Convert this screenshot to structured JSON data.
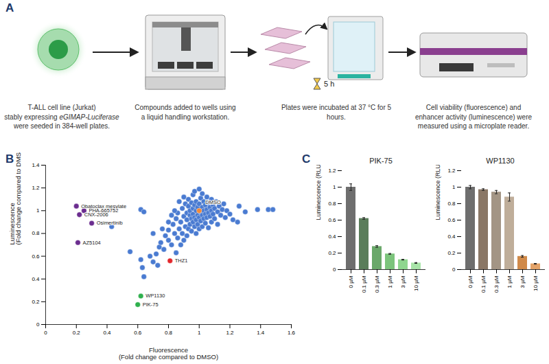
{
  "diagram": {
    "panel_label": "A",
    "italic": "eGIMAP-Luciferase",
    "steps": [
      {
        "caption": [
          "T-ALL cell line (Jurkat)",
          "stably expressing eGIMAP-Luciferase",
          "were seeded in 384-well plates."
        ]
      },
      {
        "caption": [
          "Compounds added to wells using",
          "a liquid handling workstation."
        ]
      },
      {
        "caption": [
          "Plates were incubated at 37 °C for 5 hours."
        ],
        "timer": "5 h"
      },
      {
        "caption": [
          "Cell viability (fluorescence) and",
          "enhancer activity (luminescence) were",
          "measured using a microplate reader."
        ]
      }
    ]
  },
  "chart_data": [
    {
      "panel_label": "B",
      "type": "scatter",
      "x_label": [
        "Fluorescence",
        "(Fold change compared to DMSO)"
      ],
      "y_label": [
        "Luminescence",
        "(Fold change compared to DMSO)"
      ],
      "xlim": [
        0,
        1.6
      ],
      "ylim": [
        0,
        1.4
      ],
      "xticks": [
        0,
        0.2,
        0.4,
        0.6,
        0.8,
        1,
        1.2,
        1.4,
        1.6
      ],
      "yticks": [
        0,
        0.2,
        0.4,
        0.6,
        0.8,
        1,
        1.2,
        1.4
      ],
      "series": [
        {
          "color": "#4a7bd1",
          "x": [
            0.45,
            0.43,
            0.62,
            0.64,
            0.55,
            0.62,
            0.63,
            0.64,
            0.7,
            0.72,
            0.74,
            0.75,
            0.77,
            0.78,
            0.8,
            0.8,
            0.82,
            0.83,
            0.84,
            0.85,
            0.85,
            0.86,
            0.86,
            0.87,
            0.88,
            0.88,
            0.89,
            0.89,
            0.9,
            0.9,
            0.9,
            0.91,
            0.91,
            0.92,
            0.92,
            0.92,
            0.93,
            0.93,
            0.93,
            0.94,
            0.94,
            0.94,
            0.95,
            0.95,
            0.95,
            0.96,
            0.96,
            0.96,
            0.96,
            0.97,
            0.97,
            0.97,
            0.97,
            0.98,
            0.98,
            0.98,
            0.98,
            0.99,
            0.99,
            0.99,
            1.0,
            1.0,
            1.0,
            1.0,
            1.01,
            1.01,
            1.01,
            1.02,
            1.02,
            1.02,
            1.02,
            1.03,
            1.03,
            1.03,
            1.04,
            1.04,
            1.04,
            1.05,
            1.05,
            1.05,
            1.06,
            1.06,
            1.06,
            1.07,
            1.07,
            1.08,
            1.08,
            1.08,
            1.09,
            1.09,
            1.1,
            1.1,
            1.11,
            1.12,
            1.12,
            1.13,
            1.14,
            1.15,
            1.16,
            1.17,
            1.18,
            1.2,
            1.22,
            1.25,
            1.26,
            1.3,
            1.38,
            1.45,
            1.48,
            0.82,
            0.84,
            0.87,
            0.8,
            0.76,
            0.7,
            0.68,
            0.73
          ],
          "y": [
            1.02,
            0.86,
            1.01,
            0.99,
            0.64,
            0.57,
            0.5,
            0.42,
            0.55,
            0.62,
            0.68,
            0.72,
            0.66,
            0.78,
            0.74,
            0.83,
            0.7,
            0.88,
            0.8,
            0.63,
            0.93,
            0.76,
            0.98,
            0.84,
            0.7,
            0.9,
            1.02,
            0.8,
            0.95,
            1.12,
            0.74,
            0.86,
            1.06,
            0.98,
            0.78,
            0.92,
            1.04,
            0.84,
            1.1,
            0.96,
            0.88,
            1.0,
            0.82,
            1.07,
            0.93,
            1.02,
            0.9,
            0.97,
            1.14,
            0.86,
            1.05,
            0.94,
            1.17,
            1.0,
            0.92,
            1.08,
            0.8,
            0.96,
            1.03,
            0.88,
            1.19,
            0.94,
            1.06,
            0.84,
            0.99,
            1.11,
            0.91,
            1.03,
            0.96,
            1.15,
            0.86,
            1.0,
            1.08,
            0.93,
            1.05,
            0.97,
            0.89,
            1.12,
            1.01,
            0.94,
            1.07,
            0.98,
            0.85,
            1.03,
            0.95,
            1.1,
            1.0,
            0.9,
            1.05,
            0.97,
            1.02,
            0.93,
            1.08,
            0.99,
            0.88,
            1.04,
            0.96,
            1.01,
            1.06,
            0.94,
            1.0,
            0.97,
            0.92,
            0.9,
            1.04,
            0.99,
            1.01,
            1.01,
            1.01,
            0.96,
            1.0,
            1.08,
            0.9,
            0.84,
            0.8,
            0.6,
            0.52
          ]
        },
        {
          "color": "#6b2d8f",
          "x": [
            0.2,
            0.25,
            0.22,
            0.3,
            0.21
          ],
          "y": [
            1.04,
            1.0,
            0.965,
            0.89,
            0.72
          ],
          "labels": [
            "Obatoclax mesylate",
            "PHA-665752",
            "CNX-2006",
            "Osimertinib",
            "AZ5104"
          ]
        },
        {
          "color": "#f28a3a",
          "x": [
            1.0
          ],
          "y": [
            1.0
          ],
          "labels": [
            "DMSO"
          ]
        },
        {
          "color": "#e3262b",
          "x": [
            0.81
          ],
          "y": [
            0.56
          ],
          "labels": [
            "THZ1"
          ]
        },
        {
          "color": "#2fb04d",
          "x": [
            0.62,
            0.6
          ],
          "y": [
            0.25,
            0.175
          ],
          "labels": [
            "WP1130",
            "PIK-75"
          ]
        }
      ]
    },
    {
      "panel_label": "C",
      "type": "bar",
      "title": "PIK-75",
      "y_label": "Luminescence (RLU)",
      "categories": [
        "0 µM",
        "0.1 µM",
        "0.3 µM",
        "1 µM",
        "3 µM",
        "10 µM"
      ],
      "values": [
        1.0,
        0.62,
        0.28,
        0.19,
        0.12,
        0.08
      ],
      "errors": [
        0.04,
        0.01,
        0.01,
        0.005,
        0.005,
        0.005
      ],
      "colors": [
        "#6e6e6e",
        "#5a7d5a",
        "#6aa86a",
        "#7cc47c",
        "#8fd68f",
        "#a8e4a8"
      ],
      "ylim": [
        0,
        1.2
      ],
      "yticks": [
        0,
        0.2,
        0.4,
        0.6,
        0.8,
        1,
        1.2
      ]
    },
    {
      "type": "bar",
      "title": "WP1130",
      "y_label": "Luminescence (RLU)",
      "categories": [
        "0 µM",
        "0.1 µM",
        "0.3 µM",
        "1 µM",
        "3 µM",
        "10 µM"
      ],
      "values": [
        1.0,
        0.97,
        0.94,
        0.88,
        0.16,
        0.07
      ],
      "errors": [
        0.02,
        0.01,
        0.02,
        0.05,
        0.01,
        0.005
      ],
      "colors": [
        "#6e6e6e",
        "#8a7766",
        "#a39585",
        "#bfae9a",
        "#d08a4a",
        "#e4a368"
      ],
      "ylim": [
        0,
        1.2
      ],
      "yticks": [
        0,
        0.2,
        0.4,
        0.6,
        0.8,
        1,
        1.2
      ]
    }
  ]
}
